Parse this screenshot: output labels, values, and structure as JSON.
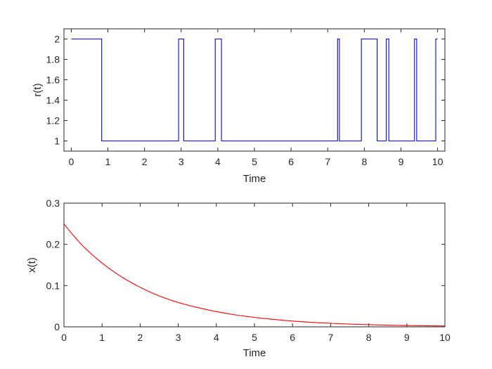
{
  "chart_data": [
    {
      "type": "line",
      "title": "",
      "xlabel": "Time",
      "ylabel": "r(t)",
      "xlim": [
        -0.2,
        10.2
      ],
      "ylim": [
        0.9,
        2.1
      ],
      "xticks": [
        "0",
        "1",
        "2",
        "3",
        "4",
        "5",
        "6",
        "7",
        "8",
        "9",
        "10"
      ],
      "yticks": [
        "1",
        "1.2",
        "1.4",
        "1.6",
        "1.8",
        "2"
      ],
      "grid": false,
      "line_style": "step",
      "series": [
        {
          "color": "#0000ff",
          "x": [
            0,
            0.83,
            0.83,
            2.93,
            2.93,
            3.07,
            3.07,
            3.93,
            3.93,
            4.1,
            4.1,
            7.27,
            7.27,
            7.32,
            7.32,
            7.92,
            7.92,
            8.35,
            8.35,
            8.6,
            8.6,
            8.67,
            8.67,
            9.37,
            9.37,
            9.43,
            9.43,
            9.95,
            9.95,
            10
          ],
          "y": [
            2,
            2,
            1,
            1,
            2,
            2,
            1,
            1,
            2,
            2,
            1,
            1,
            2,
            2,
            1,
            1,
            2,
            2,
            1,
            1,
            2,
            2,
            1,
            1,
            2,
            2,
            1,
            1,
            2,
            2
          ]
        }
      ]
    },
    {
      "type": "line",
      "title": "",
      "xlabel": "Time",
      "ylabel": "x(t)",
      "xlim": [
        0,
        10
      ],
      "ylim": [
        0,
        0.3
      ],
      "xticks": [
        "0",
        "1",
        "2",
        "3",
        "4",
        "5",
        "6",
        "7",
        "8",
        "9",
        "10"
      ],
      "yticks": [
        "0",
        "0.1",
        "0.2",
        "0.3"
      ],
      "grid": false,
      "series": [
        {
          "color": "#ff0000",
          "x": [
            0,
            0.5,
            1,
            1.5,
            2,
            2.5,
            3,
            3.5,
            4,
            4.5,
            5,
            5.5,
            6,
            6.5,
            7,
            7.5,
            8,
            8.5,
            9,
            9.5,
            10
          ],
          "y": [
            0.25,
            0.196,
            0.155,
            0.122,
            0.096,
            0.075,
            0.059,
            0.047,
            0.037,
            0.029,
            0.023,
            0.018,
            0.014,
            0.011,
            0.0085,
            0.0067,
            0.0053,
            0.0041,
            0.0032,
            0.0025,
            0.002
          ]
        }
      ]
    }
  ]
}
